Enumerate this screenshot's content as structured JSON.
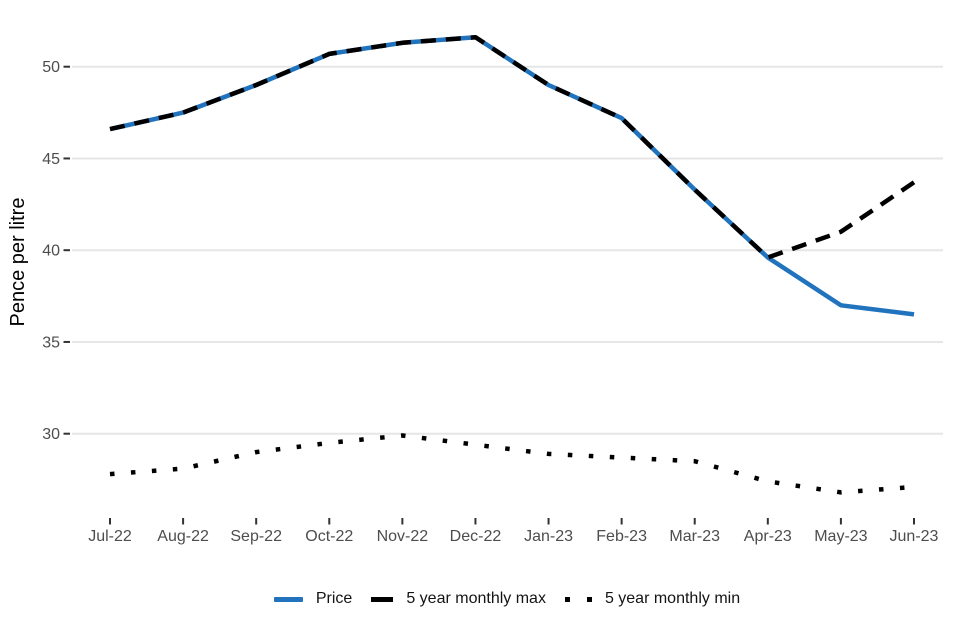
{
  "chart_data": {
    "type": "line",
    "title": "",
    "xlabel": "",
    "ylabel": "Pence per litre",
    "grid": "horizontal-major-only",
    "legend_position": "bottom-center",
    "background": "#ffffff",
    "gridline_color": "#e6e6e6",
    "tick_text_color": "#4d4d4d",
    "tick_mark_color": "#333333",
    "categories": [
      "Jul-22",
      "Aug-22",
      "Sep-22",
      "Oct-22",
      "Nov-22",
      "Dec-22",
      "Jan-23",
      "Feb-23",
      "Mar-23",
      "Apr-23",
      "May-23",
      "Jun-23"
    ],
    "y_ticks": [
      30,
      35,
      40,
      45,
      50
    ],
    "ylim": [
      25.3,
      52.8
    ],
    "series": [
      {
        "name": "Price",
        "style": "solid",
        "color": "#2073bc",
        "values": [
          46.6,
          47.5,
          49.0,
          50.7,
          51.3,
          51.6,
          49.0,
          47.2,
          43.3,
          39.6,
          37.0,
          36.5
        ]
      },
      {
        "name": "5 year monthly max",
        "style": "dashed",
        "color": "#000000",
        "values": [
          46.6,
          47.5,
          49.0,
          50.7,
          51.3,
          51.6,
          49.0,
          47.2,
          43.3,
          39.6,
          41.0,
          43.7
        ]
      },
      {
        "name": "5 year monthly min",
        "style": "dotted",
        "color": "#000000",
        "values": [
          27.8,
          28.1,
          29.0,
          29.5,
          29.9,
          29.4,
          28.9,
          28.7,
          28.5,
          27.4,
          26.8,
          27.1
        ]
      }
    ]
  }
}
